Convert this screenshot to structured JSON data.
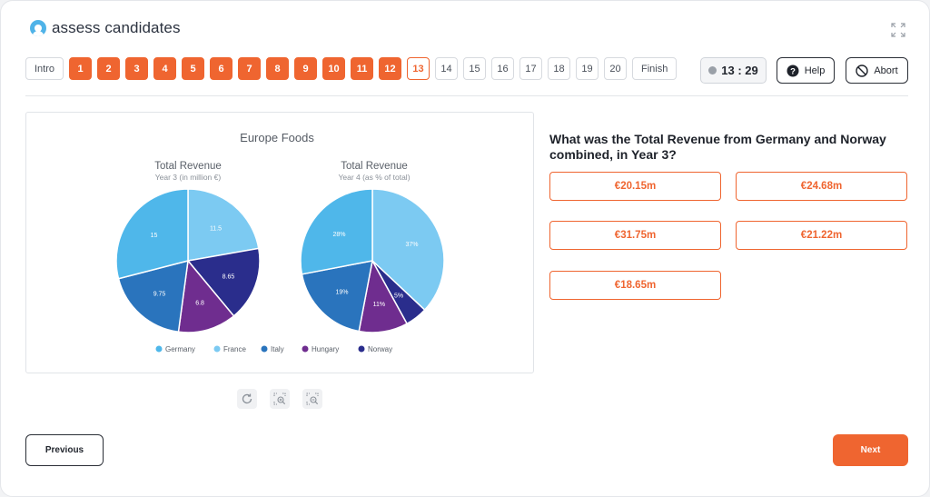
{
  "app": {
    "name": "assess candidates"
  },
  "nav": {
    "questions": [
      {
        "label": "Intro",
        "state": "intro"
      },
      {
        "label": "1",
        "state": "done"
      },
      {
        "label": "2",
        "state": "done"
      },
      {
        "label": "3",
        "state": "done"
      },
      {
        "label": "4",
        "state": "done"
      },
      {
        "label": "5",
        "state": "done"
      },
      {
        "label": "6",
        "state": "done"
      },
      {
        "label": "7",
        "state": "done"
      },
      {
        "label": "8",
        "state": "done"
      },
      {
        "label": "9",
        "state": "done"
      },
      {
        "label": "10",
        "state": "done"
      },
      {
        "label": "11",
        "state": "done"
      },
      {
        "label": "12",
        "state": "done"
      },
      {
        "label": "13",
        "state": "current"
      },
      {
        "label": "14",
        "state": "todo"
      },
      {
        "label": "15",
        "state": "todo"
      },
      {
        "label": "16",
        "state": "todo"
      },
      {
        "label": "17",
        "state": "todo"
      },
      {
        "label": "18",
        "state": "todo"
      },
      {
        "label": "19",
        "state": "todo"
      },
      {
        "label": "20",
        "state": "todo"
      },
      {
        "label": "Finish",
        "state": "finish"
      }
    ],
    "timer": "13 : 29",
    "help_label": "Help",
    "abort_label": "Abort"
  },
  "colors": {
    "accent": "#ef6530",
    "germany": "#4fb7ea",
    "france": "#7ccaf2",
    "italy": "#2a74bd",
    "hungary": "#6f2d8f",
    "norway": "#2a2d8c"
  },
  "chart_data": [
    {
      "type": "pie",
      "title": "Europe Foods",
      "subtitle": "Total Revenue",
      "caption": "Year 3 (in million €)",
      "slices": [
        {
          "name": "France",
          "value": 11.5,
          "label": "11.5"
        },
        {
          "name": "Norway",
          "value": 8.65,
          "label": "8.65"
        },
        {
          "name": "Hungary",
          "value": 6.8,
          "label": "6.8"
        },
        {
          "name": "Italy",
          "value": 9.75,
          "label": "9.75"
        },
        {
          "name": "Germany",
          "value": 15,
          "label": "15"
        }
      ]
    },
    {
      "type": "pie",
      "subtitle": "Total Revenue",
      "caption": "Year 4 (as % of total)",
      "slices": [
        {
          "name": "France",
          "value": 37,
          "label": "37%"
        },
        {
          "name": "Norway",
          "value": 5,
          "label": "5%"
        },
        {
          "name": "Hungary",
          "value": 11,
          "label": "11%"
        },
        {
          "name": "Italy",
          "value": 19,
          "label": "19%"
        },
        {
          "name": "Germany",
          "value": 28,
          "label": "28%"
        }
      ]
    }
  ],
  "legend": [
    "Germany",
    "France",
    "Italy",
    "Hungary",
    "Norway"
  ],
  "question": {
    "text": "What was the Total Revenue from Germany and Norway combined, in Year 3?",
    "options": [
      "€20.15m",
      "€24.68m",
      "€31.75m",
      "€21.22m",
      "€18.65m"
    ]
  },
  "footer": {
    "previous_label": "Previous",
    "next_label": "Next"
  }
}
